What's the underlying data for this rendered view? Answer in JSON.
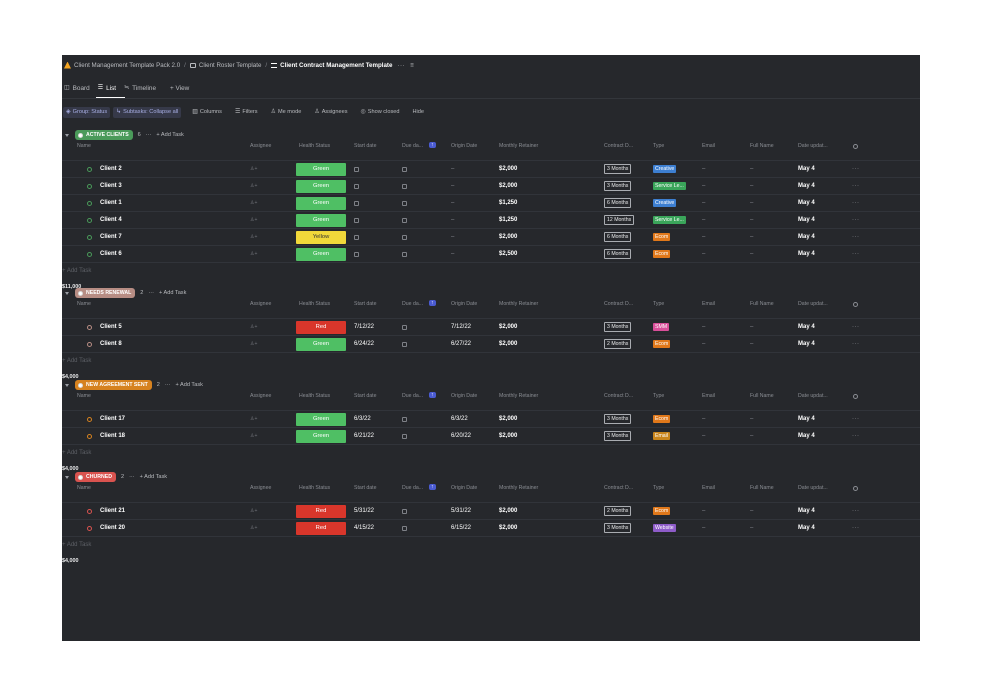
{
  "breadcrumb": {
    "items": [
      "Client Management Template Pack 2.0",
      "Client Roster Template",
      "Client Contract Management Template"
    ],
    "separator": "/",
    "more": "···",
    "menu": "≡"
  },
  "tabs": [
    {
      "label": "Board",
      "glyph": "◫"
    },
    {
      "label": "List",
      "glyph": "☰"
    },
    {
      "label": "Timeline",
      "glyph": "≒"
    },
    {
      "label": "+ View",
      "glyph": ""
    }
  ],
  "toolbar": {
    "group_status": "Group: Status",
    "subtasks": "Subtasks: Collapse all",
    "columns": "Columns",
    "filters": "Filters",
    "me_mode": "Me mode",
    "assignees": "Assignees",
    "show_closed": "Show closed",
    "hide": "Hide"
  },
  "columns": [
    "Name",
    "Assignee",
    "Health Status",
    "Start date",
    "Due da...",
    "Origin Date",
    "Monthly Retainer",
    "Contract D...",
    "Type",
    "Email",
    "Full Name",
    "Date updat..."
  ],
  "add_task_label": "+ Add Task",
  "add_task_row_label": "+ Add Task",
  "empty": "–",
  "more": "···",
  "groups": [
    {
      "name": "ACTIVE CLIENTS",
      "color": "#4a9a5a",
      "count": "6",
      "rows": [
        {
          "name": "Client 2",
          "health": "Green",
          "start": "",
          "origin": "–",
          "retainer": "$2,000",
          "duration": "3 Months",
          "type": "Creative",
          "type_color": "#3d7fd1",
          "updated": "May 4"
        },
        {
          "name": "Client 3",
          "health": "Green",
          "start": "",
          "origin": "–",
          "retainer": "$2,000",
          "duration": "3 Months",
          "type": "Service Le...",
          "type_color": "#3aa55a",
          "updated": "May 4"
        },
        {
          "name": "Client 1",
          "health": "Green",
          "start": "",
          "origin": "–",
          "retainer": "$1,250",
          "duration": "6 Months",
          "type": "Creative",
          "type_color": "#3d7fd1",
          "updated": "May 4"
        },
        {
          "name": "Client 4",
          "health": "Green",
          "start": "",
          "origin": "–",
          "retainer": "$1,250",
          "duration": "12 Months",
          "type": "Service Le...",
          "type_color": "#3aa55a",
          "updated": "May 4"
        },
        {
          "name": "Client 7",
          "health": "Yellow",
          "start": "",
          "origin": "–",
          "retainer": "$2,000",
          "duration": "6 Months",
          "type": "Ecom",
          "type_color": "#e0781a",
          "updated": "May 4"
        },
        {
          "name": "Client 6",
          "health": "Green",
          "start": "",
          "origin": "–",
          "retainer": "$2,500",
          "duration": "6 Months",
          "type": "Ecom",
          "type_color": "#e0781a",
          "updated": "May 4"
        }
      ],
      "total": "$11,000"
    },
    {
      "name": "NEEDS RENEWAL",
      "color": "#b78d84",
      "count": "2",
      "rows": [
        {
          "name": "Client 5",
          "health": "Red",
          "start": "7/12/22",
          "origin": "7/12/22",
          "retainer": "$2,000",
          "duration": "3 Months",
          "type": "SMM",
          "type_color": "#d94f9a",
          "updated": "May 4"
        },
        {
          "name": "Client 8",
          "health": "Green",
          "start": "6/24/22",
          "origin": "6/27/22",
          "retainer": "$2,000",
          "duration": "2 Months",
          "type": "Ecom",
          "type_color": "#e0781a",
          "updated": "May 4"
        }
      ],
      "total": "$4,000"
    },
    {
      "name": "NEW AGREEMENT SENT",
      "color": "#d6821f",
      "count": "2",
      "rows": [
        {
          "name": "Client 17",
          "health": "Green",
          "start": "6/3/22",
          "origin": "6/3/22",
          "retainer": "$2,000",
          "duration": "3 Months",
          "type": "Ecom",
          "type_color": "#e0781a",
          "updated": "May 4"
        },
        {
          "name": "Client 18",
          "health": "Green",
          "start": "6/21/22",
          "origin": "6/20/22",
          "retainer": "$2,000",
          "duration": "3 Months",
          "type": "Email",
          "type_color": "#c9851c",
          "updated": "May 4"
        }
      ],
      "total": "$4,000"
    },
    {
      "name": "CHURNED",
      "color": "#d9534f",
      "count": "2",
      "rows": [
        {
          "name": "Client 21",
          "health": "Red",
          "start": "5/31/22",
          "origin": "5/31/22",
          "retainer": "$2,000",
          "duration": "2 Months",
          "type": "Ecom",
          "type_color": "#e0781a",
          "updated": "May 4"
        },
        {
          "name": "Client 20",
          "health": "Red",
          "start": "4/15/22",
          "origin": "6/15/22",
          "retainer": "$2,000",
          "duration": "3 Months",
          "type": "Website",
          "type_color": "#8e5cc9",
          "updated": "May 4"
        }
      ],
      "total": "$4,000"
    }
  ],
  "health_colors": {
    "Green": "#4fbf64",
    "Yellow": "#f1d83a",
    "Red": "#d9362b"
  },
  "health_text_colors": {
    "Green": "#ffffff",
    "Yellow": "#333333",
    "Red": "#ffffff"
  }
}
